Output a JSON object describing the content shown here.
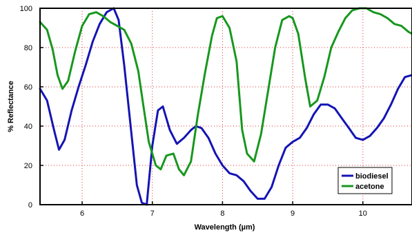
{
  "chart_data": {
    "type": "line",
    "xlabel": "Wavelength (µm)",
    "ylabel": "% Reflectance",
    "xlim": [
      5.4,
      10.7
    ],
    "ylim": [
      0,
      100
    ],
    "x_ticks": [
      6,
      7,
      8,
      9,
      10
    ],
    "y_ticks": [
      0,
      20,
      40,
      60,
      80,
      100
    ],
    "grid": "dotted, red, at each tick",
    "legend_position": "bottom-right",
    "series": [
      {
        "name": "biodiesel",
        "color": "#1414b4",
        "x": [
          5.4,
          5.5,
          5.6,
          5.67,
          5.75,
          5.85,
          5.95,
          6.05,
          6.15,
          6.25,
          6.35,
          6.45,
          6.52,
          6.6,
          6.7,
          6.78,
          6.85,
          6.92,
          7.0,
          7.08,
          7.15,
          7.25,
          7.35,
          7.45,
          7.55,
          7.62,
          7.7,
          7.8,
          7.9,
          8.0,
          8.1,
          8.2,
          8.3,
          8.4,
          8.5,
          8.6,
          8.7,
          8.8,
          8.9,
          9.0,
          9.1,
          9.2,
          9.3,
          9.4,
          9.5,
          9.6,
          9.7,
          9.8,
          9.9,
          10.0,
          10.1,
          10.2,
          10.3,
          10.4,
          10.5,
          10.6,
          10.7
        ],
        "y": [
          59,
          53,
          38,
          28,
          33,
          48,
          60,
          71,
          83,
          92,
          98,
          100,
          94,
          71,
          37,
          10,
          1,
          0,
          30,
          48,
          50,
          38,
          31,
          34,
          38,
          40,
          39,
          34,
          26,
          20,
          16,
          15,
          12,
          7,
          3,
          3,
          9,
          20,
          29,
          32,
          34,
          39,
          46,
          51,
          51,
          49,
          44,
          39,
          34,
          33,
          35,
          39,
          44,
          51,
          59,
          65,
          66
        ]
      },
      {
        "name": "acetone",
        "color": "#17971e",
        "x": [
          5.4,
          5.5,
          5.58,
          5.65,
          5.72,
          5.8,
          5.9,
          6.0,
          6.1,
          6.2,
          6.3,
          6.4,
          6.5,
          6.6,
          6.7,
          6.8,
          6.87,
          6.95,
          7.05,
          7.12,
          7.2,
          7.3,
          7.38,
          7.45,
          7.55,
          7.65,
          7.75,
          7.85,
          7.92,
          8.0,
          8.1,
          8.2,
          8.28,
          8.35,
          8.45,
          8.55,
          8.65,
          8.75,
          8.85,
          8.95,
          9.0,
          9.08,
          9.18,
          9.25,
          9.35,
          9.45,
          9.55,
          9.65,
          9.75,
          9.85,
          9.95,
          10.05,
          10.15,
          10.25,
          10.35,
          10.45,
          10.55,
          10.65,
          10.7
        ],
        "y": [
          93,
          89,
          79,
          66,
          59,
          63,
          78,
          91,
          97,
          98,
          96,
          93,
          91,
          89,
          82,
          68,
          51,
          32,
          20,
          18,
          25,
          26,
          18,
          15,
          22,
          46,
          67,
          86,
          95,
          96,
          90,
          73,
          38,
          26,
          22,
          36,
          58,
          80,
          94,
          96,
          95,
          87,
          64,
          50,
          53,
          65,
          80,
          88,
          95,
          99,
          100,
          100,
          98,
          97,
          95,
          92,
          91,
          88,
          87
        ]
      }
    ]
  }
}
